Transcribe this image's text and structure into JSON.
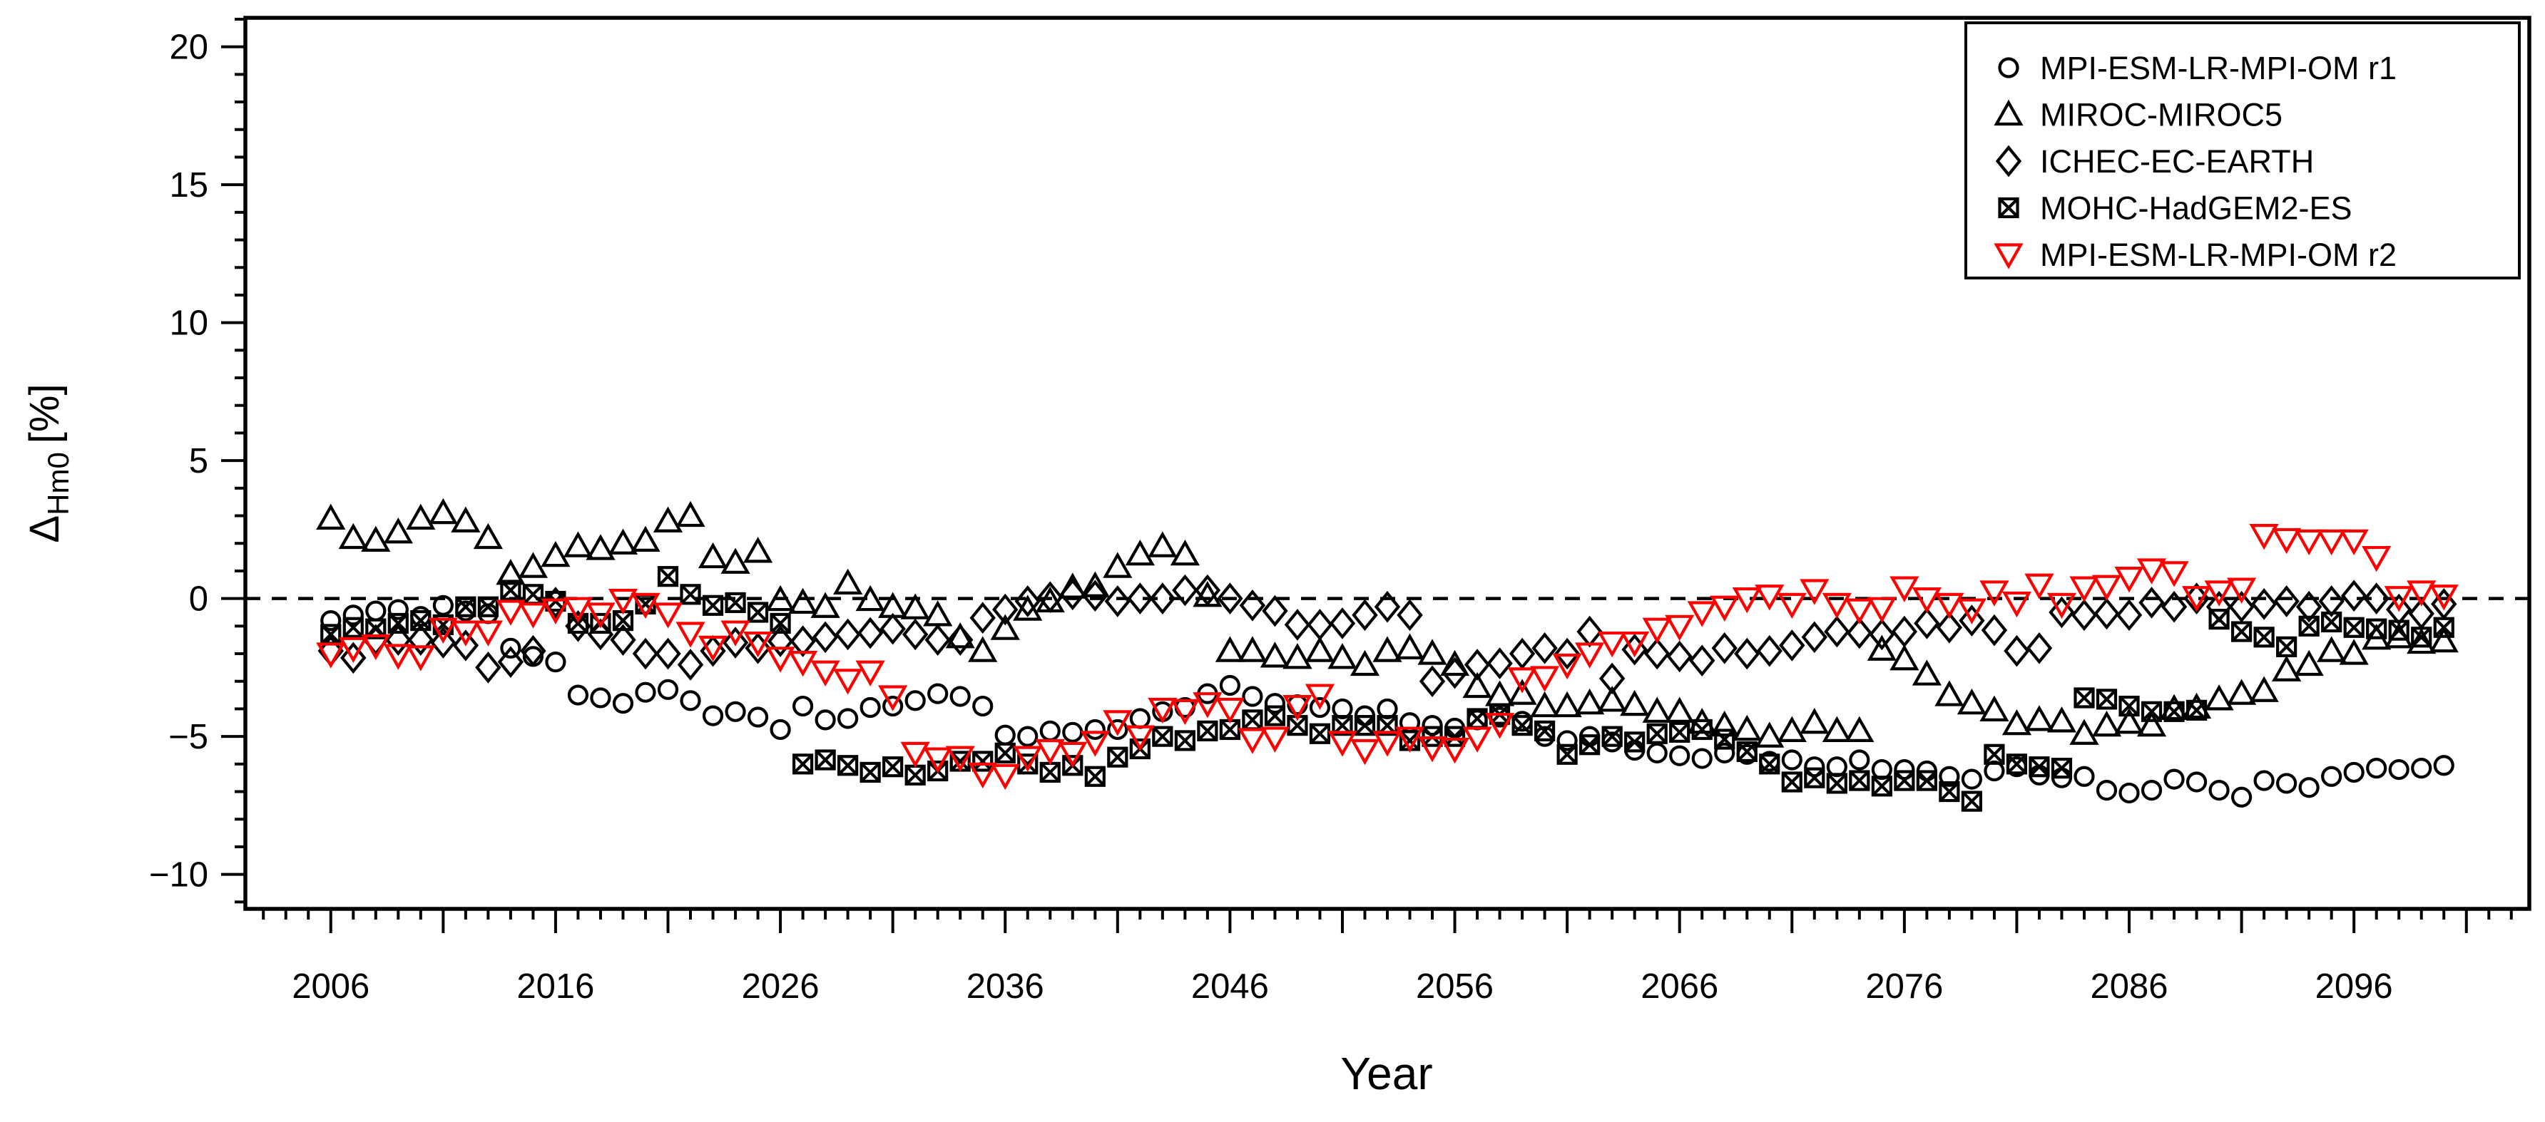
{
  "chart_data": {
    "type": "scatter",
    "title": "",
    "xlabel": "Year",
    "ylabel_main": "Δ",
    "ylabel_sub": "Hm0",
    "ylabel_unit": "[%]",
    "xlim": [
      2002.2,
      2103.8
    ],
    "ylim": [
      -11.25,
      21.05
    ],
    "x_labeled_ticks": [
      2006,
      2016,
      2026,
      2036,
      2046,
      2056,
      2066,
      2076,
      2086,
      2096
    ],
    "x_medium_tick_step": 5,
    "x_minor_tick_step": 1,
    "y_labeled_ticks": [
      -10,
      -5,
      0,
      5,
      10,
      15,
      20
    ],
    "y_labeled_tick_labels": [
      "−10",
      "−5",
      "0",
      "5",
      "10",
      "15",
      "20"
    ],
    "y_minor_tick_step": 1,
    "grid": "off",
    "zero_line": {
      "value": 0,
      "style": "dashed",
      "color": "#000000"
    },
    "legend_position": "top-right",
    "years": {
      "start": 2006,
      "end": 2100,
      "step": 1
    },
    "series": [
      {
        "name": "MPI-ESM-LR-MPI-OM r1",
        "marker": "circle",
        "color": "#000000",
        "values": [
          -0.8,
          -0.6,
          -0.45,
          -0.4,
          -0.65,
          -0.25,
          -0.45,
          -0.55,
          -1.8,
          -2.1,
          -2.3,
          -3.5,
          -3.6,
          -3.8,
          -3.4,
          -3.3,
          -3.7,
          -4.25,
          -4.1,
          -4.3,
          -4.75,
          -3.9,
          -4.4,
          -4.35,
          -3.95,
          -3.9,
          -3.7,
          -3.45,
          -3.55,
          -3.9,
          -4.95,
          -5.0,
          -4.8,
          -4.85,
          -4.75,
          -4.75,
          -4.35,
          -4.1,
          -3.95,
          -3.45,
          -3.15,
          -3.55,
          -3.8,
          -3.85,
          -3.95,
          -4.0,
          -4.25,
          -4.0,
          -4.5,
          -4.6,
          -4.7,
          -4.4,
          -4.3,
          -4.45,
          -5.0,
          -5.15,
          -5.0,
          -5.2,
          -5.5,
          -5.6,
          -5.7,
          -5.8,
          -5.6,
          -5.65,
          -5.9,
          -5.85,
          -6.1,
          -6.1,
          -5.85,
          -6.2,
          -6.2,
          -6.25,
          -6.45,
          -6.55,
          -6.25,
          -6.1,
          -6.4,
          -6.5,
          -6.45,
          -6.95,
          -7.05,
          -6.95,
          -6.55,
          -6.65,
          -6.95,
          -7.2,
          -6.6,
          -6.7,
          -6.85,
          -6.45,
          -6.3,
          -6.15,
          -6.2,
          -6.15,
          -6.05
        ]
      },
      {
        "name": "MIROC-MIROC5",
        "marker": "triangle-up",
        "color": "#000000",
        "values": [
          2.9,
          2.2,
          2.1,
          2.4,
          2.9,
          3.1,
          2.8,
          2.2,
          0.9,
          1.15,
          1.55,
          1.9,
          1.8,
          2.0,
          2.1,
          2.8,
          3.0,
          1.5,
          1.3,
          1.7,
          -0.05,
          -0.15,
          -0.3,
          0.55,
          -0.05,
          -0.3,
          -0.35,
          -0.6,
          -1.4,
          -1.9,
          -1.1,
          -0.4,
          -0.1,
          0.4,
          0.45,
          1.15,
          1.6,
          1.9,
          1.6,
          0.1,
          -1.9,
          -1.9,
          -2.1,
          -2.15,
          -1.9,
          -2.15,
          -2.4,
          -1.9,
          -1.8,
          -2.0,
          -2.4,
          -3.2,
          -3.5,
          -3.45,
          -3.9,
          -3.9,
          -3.8,
          -3.7,
          -3.85,
          -4.1,
          -4.1,
          -4.5,
          -4.6,
          -4.75,
          -5.0,
          -4.8,
          -4.5,
          -4.8,
          -4.8,
          -1.85,
          -2.2,
          -2.75,
          -3.5,
          -3.8,
          -4.05,
          -4.55,
          -4.4,
          -4.45,
          -4.9,
          -4.6,
          -4.5,
          -4.6,
          -4.0,
          -3.95,
          -3.65,
          -3.45,
          -3.35,
          -2.6,
          -2.4,
          -1.9,
          -2.0,
          -1.45,
          -1.4,
          -1.6,
          -1.55
        ]
      },
      {
        "name": "ICHEC-EC-EARTH",
        "marker": "diamond",
        "color": "#000000",
        "values": [
          -1.9,
          -2.15,
          -1.5,
          -1.5,
          -1.5,
          -1.6,
          -1.7,
          -2.5,
          -2.3,
          -1.9,
          -0.15,
          -1.0,
          -1.3,
          -1.5,
          -2.0,
          -2.0,
          -2.4,
          -1.9,
          -1.6,
          -1.8,
          -1.55,
          -1.55,
          -1.4,
          -1.3,
          -1.25,
          -1.1,
          -1.3,
          -1.5,
          -1.5,
          -0.7,
          -0.4,
          -0.1,
          0.05,
          0.15,
          0.1,
          -0.1,
          0.0,
          0.0,
          0.3,
          0.3,
          0.0,
          -0.25,
          -0.45,
          -0.95,
          -0.95,
          -0.9,
          -0.6,
          -0.3,
          -0.6,
          -3.0,
          -2.7,
          -2.4,
          -2.35,
          -2.0,
          -1.8,
          -2.0,
          -1.2,
          -2.9,
          -1.85,
          -2.0,
          -2.1,
          -2.25,
          -1.8,
          -2.0,
          -1.9,
          -1.7,
          -1.4,
          -1.2,
          -1.25,
          -1.3,
          -1.2,
          -0.9,
          -1.05,
          -0.8,
          -1.15,
          -1.9,
          -1.8,
          -0.5,
          -0.6,
          -0.55,
          -0.6,
          -0.15,
          -0.3,
          0.0,
          -0.3,
          -0.3,
          -0.2,
          -0.1,
          -0.3,
          -0.1,
          0.1,
          0.0,
          -0.4,
          -0.55,
          -0.2
        ]
      },
      {
        "name": "MOHC-HadGEM2-ES",
        "marker": "square-x",
        "color": "#000000",
        "values": [
          -1.3,
          -1.05,
          -1.1,
          -0.9,
          -0.8,
          -0.95,
          -0.3,
          -0.3,
          0.3,
          0.15,
          -0.1,
          -0.9,
          -0.9,
          -0.8,
          -0.2,
          0.8,
          0.15,
          -0.25,
          -0.15,
          -0.5,
          -0.9,
          -6.0,
          -5.85,
          -6.05,
          -6.3,
          -6.1,
          -6.4,
          -6.25,
          -5.9,
          -5.9,
          -5.6,
          -6.0,
          -6.3,
          -6.05,
          -6.45,
          -5.75,
          -5.45,
          -5.0,
          -5.15,
          -4.8,
          -4.75,
          -4.4,
          -4.25,
          -4.6,
          -4.9,
          -4.6,
          -4.6,
          -4.6,
          -5.15,
          -5.0,
          -5.0,
          -4.35,
          -4.2,
          -4.6,
          -4.8,
          -5.65,
          -5.3,
          -5.0,
          -5.2,
          -4.9,
          -4.85,
          -4.75,
          -5.1,
          -5.55,
          -6.0,
          -6.65,
          -6.5,
          -6.7,
          -6.6,
          -6.8,
          -6.6,
          -6.6,
          -7.0,
          -7.35,
          -5.65,
          -6.0,
          -6.1,
          -6.15,
          -3.6,
          -3.65,
          -3.9,
          -4.1,
          -4.1,
          -4.05,
          -0.75,
          -1.2,
          -1.4,
          -1.75,
          -1.0,
          -0.85,
          -1.05,
          -1.1,
          -1.15,
          -1.4,
          -1.05
        ]
      },
      {
        "name": "MPI-ESM-LR-MPI-OM r2",
        "marker": "triangle-down",
        "color": "#FF0000",
        "values": [
          -2.0,
          -1.8,
          -1.7,
          -2.05,
          -2.1,
          -1.1,
          -1.2,
          -1.2,
          -0.45,
          -0.55,
          -0.4,
          -0.35,
          -0.55,
          -0.05,
          -0.2,
          -0.55,
          -1.25,
          -1.75,
          -1.2,
          -1.6,
          -2.15,
          -2.3,
          -2.65,
          -2.95,
          -2.65,
          -3.55,
          -5.6,
          -5.8,
          -5.75,
          -6.35,
          -6.4,
          -5.75,
          -5.5,
          -5.6,
          -5.2,
          -4.45,
          -5.0,
          -4.0,
          -4.05,
          -3.8,
          -4.0,
          -5.1,
          -5.05,
          -3.9,
          -3.5,
          -5.2,
          -5.5,
          -5.2,
          -5.05,
          -5.4,
          -5.45,
          -5.05,
          -4.55,
          -2.9,
          -2.85,
          -2.4,
          -2.0,
          -1.6,
          -1.6,
          -1.1,
          -1.0,
          -0.5,
          -0.3,
          0.0,
          0.1,
          -0.2,
          0.3,
          -0.2,
          -0.4,
          -0.35,
          0.4,
          0.0,
          -0.2,
          -0.4,
          0.25,
          -0.15,
          0.5,
          -0.2,
          0.4,
          0.45,
          0.75,
          1.05,
          0.95,
          0.05,
          0.25,
          0.35,
          2.3,
          2.15,
          2.1,
          2.1,
          2.1,
          1.5,
          0.05,
          0.25,
          0.1
        ]
      }
    ]
  }
}
